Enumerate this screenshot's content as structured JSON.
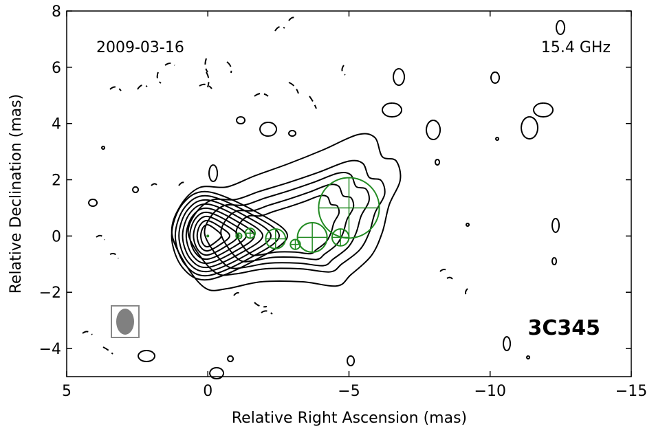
{
  "chart_data": {
    "type": "contour",
    "xlabel": "Relative Right Ascension (mas)",
    "ylabel": "Relative Declination (mas)",
    "annotations": [
      "2009-03-16",
      "15.4 GHz",
      "3C345"
    ],
    "xlim": [
      5,
      -15
    ],
    "ylim": [
      -5,
      8
    ],
    "xticks": [
      5,
      0,
      {
        "value": -5,
        "label": "−5"
      },
      {
        "value": -10,
        "label": "−10"
      },
      {
        "value": -15,
        "label": "−15"
      }
    ],
    "yticks": [
      {
        "value": -4,
        "label": "−4"
      },
      {
        "value": -2,
        "label": "−2"
      },
      0,
      2,
      4,
      6,
      8
    ],
    "components": {
      "color": "#228b22",
      "x": [
        0,
        -1.1,
        -1.5,
        -2.4,
        -3.1,
        -3.7,
        -4.7,
        -5.0
      ],
      "y": [
        0,
        0,
        0.1,
        -0.1,
        -0.3,
        -0.05,
        -0.05,
        1.0
      ],
      "size": [
        0.05,
        0.2,
        0.35,
        0.7,
        0.35,
        1.05,
        0.6,
        2.15
      ]
    }
  }
}
